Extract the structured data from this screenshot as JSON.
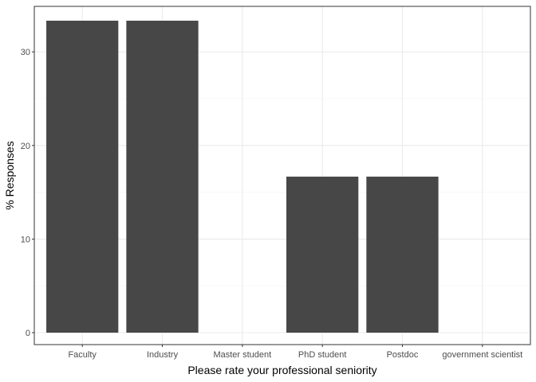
{
  "chart_data": {
    "type": "bar",
    "title": "",
    "xlabel": "Please rate your professional seniority",
    "ylabel": "% Responses",
    "categories": [
      "Faculty",
      "Industry",
      "Master student",
      "PhD student",
      "Postdoc",
      "government scientist"
    ],
    "values": [
      33.33,
      33.33,
      0,
      16.67,
      16.67,
      0
    ],
    "ylim": [
      0,
      34.8
    ],
    "yticks": [
      0,
      10,
      20,
      30
    ],
    "grid": true,
    "legend": "none"
  },
  "colors": {
    "bar": "#474747",
    "grid_major": "#ebebeb",
    "grid_minor": "#f5f5f5",
    "panel_border": "#333333",
    "tick_text": "#4d4d4d"
  }
}
